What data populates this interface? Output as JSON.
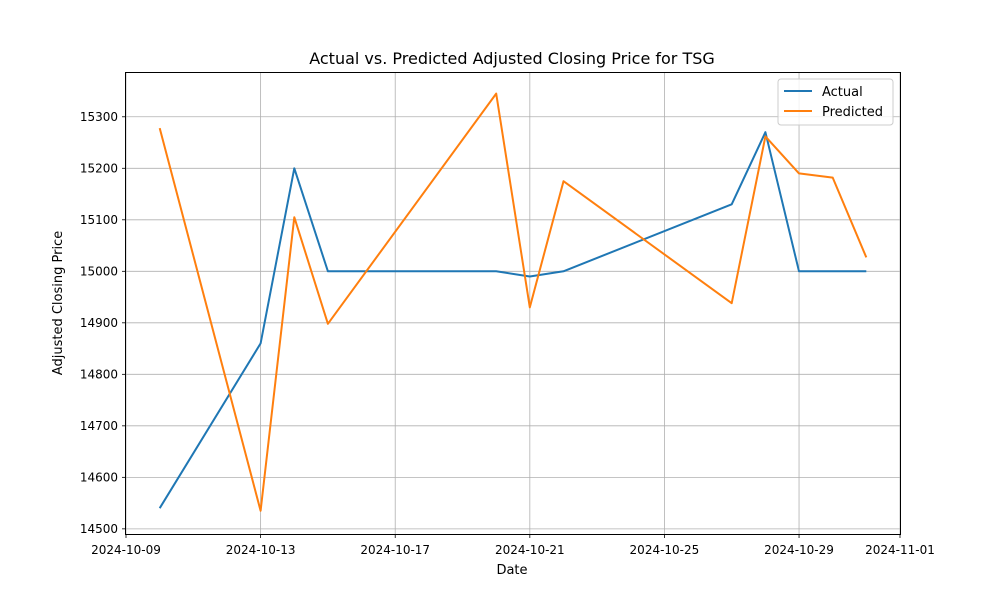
{
  "chart_data": {
    "type": "line",
    "title": "Actual vs. Predicted Adjusted Closing Price for TSG",
    "xlabel": "Date",
    "ylabel": "Adjusted Closing Price",
    "x": [
      "2024-10-10",
      "2024-10-13",
      "2024-10-14",
      "2024-10-15",
      "2024-10-20",
      "2024-10-21",
      "2024-10-22",
      "2024-10-27",
      "2024-10-28",
      "2024-10-29",
      "2024-10-30",
      "2024-10-31"
    ],
    "xticks": [
      "2024-10-09",
      "2024-10-13",
      "2024-10-17",
      "2024-10-21",
      "2024-10-25",
      "2024-10-29",
      "2024-11-01"
    ],
    "xlim": [
      "2024-10-09",
      "2024-11-01"
    ],
    "yticks": [
      14500,
      14600,
      14700,
      14800,
      14900,
      15000,
      15100,
      15200,
      15300
    ],
    "ylim": [
      14490,
      15385
    ],
    "grid": true,
    "legend": "top-right",
    "series": [
      {
        "name": "Actual",
        "color": "#1f77b4",
        "values": [
          14540,
          14860,
          15200,
          15000,
          15000,
          14990,
          15000,
          15130,
          15270,
          15000,
          15000,
          15000
        ]
      },
      {
        "name": "Predicted",
        "color": "#ff7f0e",
        "values": [
          15278,
          14535,
          15105,
          14898,
          15345,
          14930,
          15175,
          14938,
          15262,
          15190,
          15182,
          15027
        ]
      }
    ]
  }
}
